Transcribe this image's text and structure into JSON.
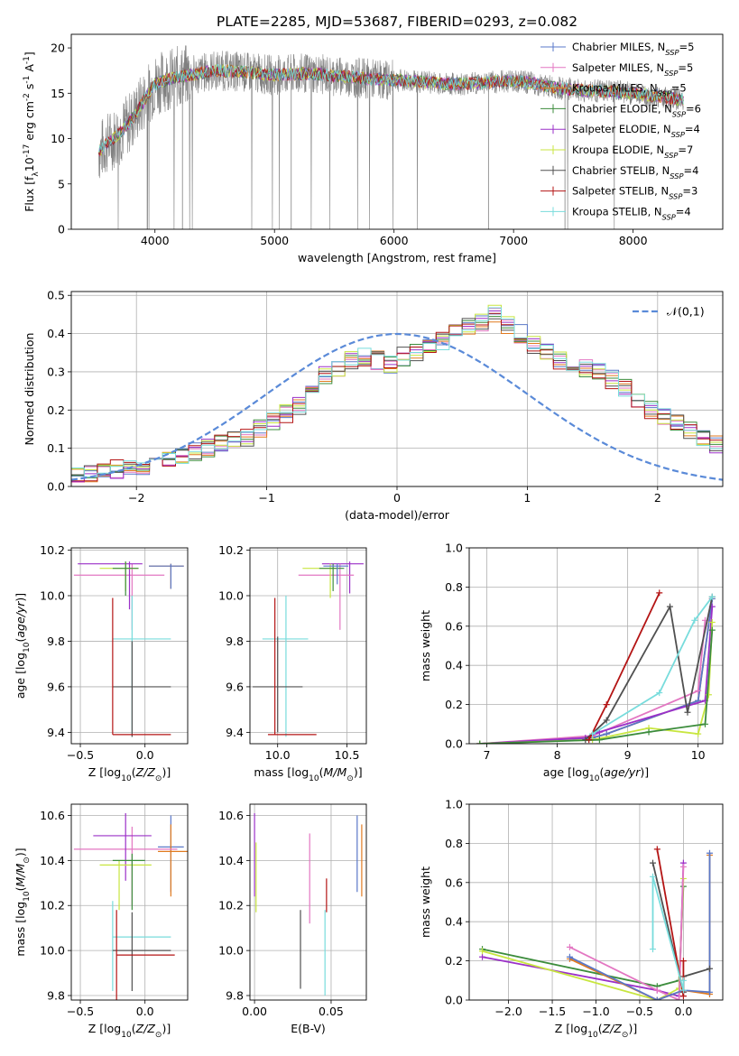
{
  "figure": {
    "title": "PLATE=2285, MJD=53687, FIBERID=0293, z=0.082"
  },
  "chart_data": [
    {
      "id": "spectrum",
      "type": "line",
      "xlabel": "wavelength [Angstrom, rest frame]",
      "ylabel": "Flux [f$_\\lambda$10$^{-17}$ erg cm$^{-2}$ s$^{-1}$ A$^{-1}$]",
      "xlim": [
        3300,
        8750
      ],
      "ylim": [
        0,
        21.5
      ],
      "xticks": [
        4000,
        5000,
        6000,
        7000,
        8000
      ],
      "yticks": [
        0,
        5,
        10,
        15,
        20
      ],
      "grid": false,
      "legend_position": "top-right",
      "data_color": "#808080",
      "continuum": {
        "x": [
          3530,
          3600,
          3700,
          3800,
          3900,
          4000,
          4100,
          4200,
          4300,
          4500,
          4700,
          5000,
          5300,
          5600,
          5900,
          6200,
          6500,
          6800,
          7000,
          7200,
          7400,
          7600,
          7800,
          8000,
          8200,
          8400
        ],
        "y": [
          8.5,
          9.5,
          10.5,
          12.0,
          14.0,
          16.0,
          16.5,
          16.8,
          17.0,
          17.5,
          17.4,
          17.0,
          17.2,
          16.8,
          16.5,
          16.3,
          16.0,
          16.2,
          16.4,
          16.0,
          15.5,
          15.3,
          15.2,
          15.0,
          14.7,
          14.3
        ]
      },
      "series": [
        {
          "name": "Chabrier MILES, N$_{SSP}$=5",
          "color": "#5a78c8"
        },
        {
          "name": "Salpeter MILES, N$_{SSP}$=5",
          "color": "#e377c2"
        },
        {
          "name": "Kroupa MILES, N$_{SSP}$=5",
          "color": "#e07a1f"
        },
        {
          "name": "Chabrier ELODIE, N$_{SSP}$=6",
          "color": "#3c8c3c"
        },
        {
          "name": "Salpeter ELODIE, N$_{SSP}$=4",
          "color": "#9b30c8"
        },
        {
          "name": "Kroupa ELODIE, N$_{SSP}$=7",
          "color": "#c8e640"
        },
        {
          "name": "Chabrier STELIB, N$_{SSP}$=4",
          "color": "#505050"
        },
        {
          "name": "Salpeter STELIB, N$_{SSP}$=3",
          "color": "#b41414"
        },
        {
          "name": "Kroupa STELIB, N$_{SSP}$=4",
          "color": "#78dcdc"
        }
      ]
    },
    {
      "id": "residuals",
      "type": "line",
      "xlabel": "(data-model)/error",
      "ylabel": "Normed distribution",
      "xlim": [
        -2.5,
        2.5
      ],
      "ylim": [
        0,
        0.51
      ],
      "xticks": [
        -2,
        -1,
        0,
        1,
        2
      ],
      "yticks": [
        0.0,
        0.1,
        0.2,
        0.3,
        0.4,
        0.5
      ],
      "grid": true,
      "legend_position": "top-right",
      "legend_label": "$\\mathcal{N}(0,1)$",
      "gaussian_color": "#5a8ad8",
      "bin_width": 0.1,
      "hist_base": [
        0.03,
        0.035,
        0.04,
        0.045,
        0.05,
        0.055,
        0.06,
        0.07,
        0.08,
        0.09,
        0.1,
        0.11,
        0.12,
        0.13,
        0.15,
        0.17,
        0.19,
        0.21,
        0.25,
        0.29,
        0.31,
        0.33,
        0.34,
        0.33,
        0.32,
        0.34,
        0.35,
        0.36,
        0.38,
        0.4,
        0.42,
        0.43,
        0.45,
        0.42,
        0.4,
        0.37,
        0.35,
        0.33,
        0.32,
        0.31,
        0.3,
        0.28,
        0.26,
        0.23,
        0.2,
        0.18,
        0.17,
        0.15,
        0.13,
        0.11,
        0.1,
        0.09,
        0.08,
        0.07,
        0.06,
        0.05,
        0.04,
        0.035,
        0.03,
        0.03
      ]
    },
    {
      "id": "age-vs-Z",
      "type": "scatter",
      "xlabel": "Z [log$_{10}$($Z/Z_\\odot$)]",
      "ylabel": "age  [log$_{10}$($age/yr$)]",
      "xlim": [
        -0.57,
        0.33
      ],
      "ylim": [
        9.35,
        10.21
      ],
      "xticks": [
        -0.5,
        0.0
      ],
      "yticks": [
        9.4,
        9.6,
        9.8,
        10.0,
        10.2
      ],
      "grid": true,
      "points": [
        {
          "color": "#e07a1f",
          "x": 0.2,
          "xerr": [
            0.17,
            0.1
          ],
          "y": 10.13,
          "yerr": [
            0.1,
            0.01
          ]
        },
        {
          "color": "#5a78c8",
          "x": 0.2,
          "xerr": [
            0.17,
            0.1
          ],
          "y": 10.13,
          "yerr": [
            0.1,
            0.01
          ]
        },
        {
          "color": "#e377c2",
          "x": -0.1,
          "xerr": [
            0.45,
            0.25
          ],
          "y": 10.09,
          "yerr": [
            0.24,
            0.05
          ]
        },
        {
          "color": "#9b30c8",
          "x": -0.12,
          "xerr": [
            0.4,
            0.1
          ],
          "y": 10.14,
          "yerr": [
            0.2,
            0.01
          ]
        },
        {
          "color": "#c8e640",
          "x": -0.15,
          "xerr": [
            0.2,
            0.1
          ],
          "y": 10.12,
          "yerr": [
            0.1,
            0.03
          ]
        },
        {
          "color": "#3c8c3c",
          "x": -0.15,
          "xerr": [
            0.1,
            0.1
          ],
          "y": 10.12,
          "yerr": [
            0.12,
            0.03
          ]
        },
        {
          "color": "#78dcdc",
          "x": -0.1,
          "xerr": [
            0.15,
            0.3
          ],
          "y": 9.81,
          "yerr": [
            0.43,
            0.19
          ]
        },
        {
          "color": "#505050",
          "x": -0.1,
          "xerr": [
            0.15,
            0.3
          ],
          "y": 9.6,
          "yerr": [
            0.22,
            0.2
          ]
        },
        {
          "color": "#b41414",
          "x": -0.25,
          "xerr": [
            0.0,
            0.45
          ],
          "y": 9.39,
          "yerr": [
            0.0,
            0.6
          ]
        }
      ]
    },
    {
      "id": "age-vs-mass",
      "type": "scatter",
      "xlabel": "mass [log$_{10}$($M/M_\\odot$)]",
      "ylabel": "",
      "xlim": [
        9.8,
        10.64
      ],
      "ylim": [
        9.35,
        10.21
      ],
      "xticks": [
        10.0,
        10.5
      ],
      "yticks": [
        9.4,
        9.6,
        9.8,
        10.0,
        10.2
      ],
      "grid": true,
      "points": [
        {
          "color": "#9b30c8",
          "x": 10.52,
          "xerr": [
            0.2,
            0.1
          ],
          "y": 10.14,
          "yerr": [
            0.13,
            0.01
          ]
        },
        {
          "color": "#e377c2",
          "x": 10.45,
          "xerr": [
            0.3,
            0.1
          ],
          "y": 10.09,
          "yerr": [
            0.24,
            0.05
          ]
        },
        {
          "color": "#c8e640",
          "x": 10.38,
          "xerr": [
            0.2,
            0.05
          ],
          "y": 10.12,
          "yerr": [
            0.13,
            0.02
          ]
        },
        {
          "color": "#3c8c3c",
          "x": 10.4,
          "xerr": [
            0.1,
            0.08
          ],
          "y": 10.12,
          "yerr": [
            0.1,
            0.02
          ]
        },
        {
          "color": "#5a78c8",
          "x": 10.43,
          "xerr": [
            0.1,
            0.08
          ],
          "y": 10.13,
          "yerr": [
            0.08,
            0.01
          ]
        },
        {
          "color": "#78dcdc",
          "x": 10.06,
          "xerr": [
            0.17,
            0.16
          ],
          "y": 9.81,
          "yerr": [
            0.43,
            0.19
          ]
        },
        {
          "color": "#505050",
          "x": 10.0,
          "xerr": [
            0.18,
            0.18
          ],
          "y": 9.6,
          "yerr": [
            0.2,
            0.22
          ]
        },
        {
          "color": "#b41414",
          "x": 9.98,
          "xerr": [
            0.05,
            0.3
          ],
          "y": 9.39,
          "yerr": [
            0.0,
            0.6
          ]
        }
      ]
    },
    {
      "id": "weight-vs-age",
      "type": "line",
      "xlabel": "age  [log$_{10}$($age/yr$)]",
      "ylabel": "mass weight",
      "xlim": [
        6.75,
        10.35
      ],
      "ylim": [
        0,
        1.0
      ],
      "xticks": [
        7,
        8,
        9,
        10
      ],
      "yticks": [
        0.0,
        0.2,
        0.4,
        0.6,
        0.8,
        1.0
      ],
      "grid": true,
      "series": [
        {
          "color": "#e07a1f",
          "x": [
            6.9,
            8.5,
            8.7,
            10.0,
            10.2
          ],
          "y": [
            0.0,
            0.03,
            0.05,
            0.22,
            0.74
          ]
        },
        {
          "color": "#5a78c8",
          "x": [
            6.9,
            8.5,
            8.7,
            10.0,
            10.2
          ],
          "y": [
            0.0,
            0.03,
            0.05,
            0.22,
            0.74
          ]
        },
        {
          "color": "#e377c2",
          "x": [
            6.9,
            8.5,
            10.0,
            10.1
          ],
          "y": [
            0.0,
            0.04,
            0.27,
            0.63
          ]
        },
        {
          "color": "#9b30c8",
          "x": [
            6.9,
            8.4,
            8.6,
            10.1,
            10.2
          ],
          "y": [
            0.0,
            0.03,
            0.06,
            0.22,
            0.7
          ]
        },
        {
          "color": "#c8e640",
          "x": [
            6.9,
            8.5,
            9.3,
            10.0,
            10.15,
            10.2
          ],
          "y": [
            0.0,
            0.02,
            0.08,
            0.05,
            0.25,
            0.62
          ]
        },
        {
          "color": "#3c8c3c",
          "x": [
            6.9,
            8.6,
            9.3,
            10.1,
            10.2
          ],
          "y": [
            0.0,
            0.02,
            0.06,
            0.1,
            0.58
          ]
        },
        {
          "color": "#505050",
          "x": [
            8.4,
            8.7,
            9.6,
            9.85,
            10.2
          ],
          "y": [
            0.02,
            0.12,
            0.7,
            0.16,
            0.75
          ]
        },
        {
          "color": "#b41414",
          "x": [
            8.45,
            8.7,
            9.45
          ],
          "y": [
            0.02,
            0.2,
            0.77
          ]
        },
        {
          "color": "#78dcdc",
          "x": [
            8.5,
            9.45,
            9.95,
            10.2
          ],
          "y": [
            0.05,
            0.26,
            0.63,
            0.75
          ]
        }
      ]
    },
    {
      "id": "mass-vs-Z",
      "type": "scatter",
      "xlabel": "Z [log$_{10}$($Z/Z_\\odot$)]",
      "ylabel": "mass [log$_{10}$($M/M_\\odot$)]",
      "xlim": [
        -0.57,
        0.33
      ],
      "ylim": [
        9.78,
        10.65
      ],
      "xticks": [
        -0.5,
        0.0
      ],
      "yticks": [
        9.8,
        10.0,
        10.2,
        10.4,
        10.6
      ],
      "grid": true,
      "points": [
        {
          "color": "#5a78c8",
          "x": 0.2,
          "xerr": [
            0.1,
            0.1
          ],
          "y": 10.46,
          "yerr": [
            0.2,
            0.14
          ]
        },
        {
          "color": "#e07a1f",
          "x": 0.2,
          "xerr": [
            0.1,
            0.15
          ],
          "y": 10.44,
          "yerr": [
            0.2,
            0.12
          ]
        },
        {
          "color": "#e377c2",
          "x": -0.1,
          "xerr": [
            0.45,
            0.35
          ],
          "y": 10.45,
          "yerr": [
            0.25,
            0.1
          ]
        },
        {
          "color": "#9b30c8",
          "x": -0.15,
          "xerr": [
            0.25,
            0.2
          ],
          "y": 10.51,
          "yerr": [
            0.2,
            0.1
          ]
        },
        {
          "color": "#c8e640",
          "x": -0.2,
          "xerr": [
            0.15,
            0.25
          ],
          "y": 10.38,
          "yerr": [
            0.2,
            0.02
          ]
        },
        {
          "color": "#3c8c3c",
          "x": -0.1,
          "xerr": [
            0.15,
            0.1
          ],
          "y": 10.4,
          "yerr": [
            0.22,
            0.03
          ]
        },
        {
          "color": "#78dcdc",
          "x": -0.25,
          "xerr": [
            0.0,
            0.45
          ],
          "y": 10.06,
          "yerr": [
            0.24,
            0.16
          ]
        },
        {
          "color": "#505050",
          "x": -0.1,
          "xerr": [
            0.15,
            0.3
          ],
          "y": 10.0,
          "yerr": [
            0.18,
            0.17
          ]
        },
        {
          "color": "#b41414",
          "x": -0.22,
          "xerr": [
            0.0,
            0.45
          ],
          "y": 9.98,
          "yerr": [
            0.2,
            0.2
          ]
        }
      ]
    },
    {
      "id": "mass-vs-EBV",
      "type": "scatter",
      "xlabel": "E(B-V)",
      "ylabel": "",
      "xlim": [
        -0.003,
        0.073
      ],
      "ylim": [
        9.78,
        10.65
      ],
      "xticks": [
        0.0,
        0.05
      ],
      "xticklabels": [
        "0.00",
        "0.05"
      ],
      "yticks": [
        9.8,
        10.0,
        10.2,
        10.4,
        10.6
      ],
      "grid": true,
      "points": [
        {
          "color": "#9b30c8",
          "x": 0.0,
          "y": 10.44,
          "yerr": [
            0.2,
            0.17
          ]
        },
        {
          "color": "#c8e640",
          "x": 0.001,
          "y": 10.3,
          "yerr": [
            0.13,
            0.18
          ]
        },
        {
          "color": "#505050",
          "x": 0.03,
          "y": 10.0,
          "yerr": [
            0.17,
            0.18
          ]
        },
        {
          "color": "#e377c2",
          "x": 0.036,
          "y": 10.32,
          "yerr": [
            0.2,
            0.2
          ]
        },
        {
          "color": "#b41414",
          "x": 0.047,
          "y": 10.25,
          "yerr": [
            0.08,
            0.07
          ]
        },
        {
          "color": "#78dcdc",
          "x": 0.046,
          "y": 10.05,
          "yerr": [
            0.25,
            0.13
          ]
        },
        {
          "color": "#5a78c8",
          "x": 0.067,
          "y": 10.43,
          "yerr": [
            0.17,
            0.17
          ]
        },
        {
          "color": "#e07a1f",
          "x": 0.07,
          "y": 10.4,
          "yerr": [
            0.16,
            0.16
          ]
        }
      ]
    },
    {
      "id": "weight-vs-Z",
      "type": "line",
      "xlabel": "Z [log$_{10}$($Z/Z_\\odot$)]",
      "ylabel": "mass weight",
      "xlim": [
        -2.45,
        0.45
      ],
      "ylim": [
        0,
        1.0
      ],
      "xticks": [
        -2.0,
        -1.5,
        -1.0,
        -0.5,
        0.0
      ],
      "yticks": [
        0.0,
        0.2,
        0.4,
        0.6,
        0.8,
        1.0
      ],
      "grid": true,
      "series": [
        {
          "color": "#3c8c3c",
          "x": [
            -2.3,
            -0.3,
            -0.05,
            0.0
          ],
          "y": [
            0.26,
            0.07,
            0.1,
            0.58
          ]
        },
        {
          "color": "#9b30c8",
          "x": [
            -2.3,
            -0.3,
            -0.05,
            0.0
          ],
          "y": [
            0.22,
            0.05,
            0.02,
            0.7
          ]
        },
        {
          "color": "#c8e640",
          "x": [
            -2.3,
            -0.3,
            -0.05,
            0.0
          ],
          "y": [
            0.25,
            0.0,
            0.06,
            0.62
          ]
        },
        {
          "color": "#e377c2",
          "x": [
            -1.3,
            -0.3,
            -0.05,
            0.0
          ],
          "y": [
            0.27,
            0.05,
            0.0,
            0.68
          ]
        },
        {
          "color": "#e07a1f",
          "x": [
            -1.3,
            -0.3,
            0.0,
            0.3,
            0.3
          ],
          "y": [
            0.21,
            0.0,
            0.05,
            0.03,
            0.74
          ]
        },
        {
          "color": "#5a78c8",
          "x": [
            -1.3,
            -0.3,
            0.0,
            0.3,
            0.3
          ],
          "y": [
            0.22,
            0.0,
            0.05,
            0.04,
            0.75
          ]
        },
        {
          "color": "#505050",
          "x": [
            -0.35,
            0.0,
            0.0,
            0.3
          ],
          "y": [
            0.7,
            0.04,
            0.12,
            0.16
          ]
        },
        {
          "color": "#b41414",
          "x": [
            -0.3,
            0.0,
            0.0
          ],
          "y": [
            0.77,
            0.02,
            0.2
          ]
        },
        {
          "color": "#78dcdc",
          "x": [
            -0.35,
            -0.35,
            0.0,
            0.0
          ],
          "y": [
            0.26,
            0.63,
            0.05,
            0.1
          ]
        }
      ]
    }
  ]
}
